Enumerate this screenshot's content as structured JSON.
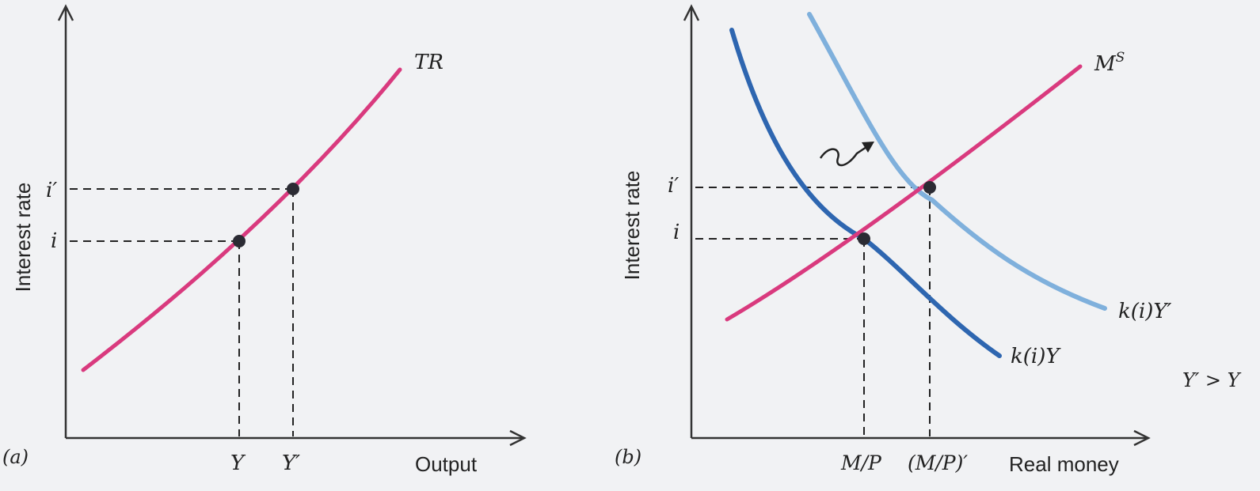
{
  "colors": {
    "tr_curve": "#d93a7e",
    "ms_curve": "#d93a7e",
    "demand_y": "#2e66b0",
    "demand_y_prime": "#7fb0dc",
    "axis": "#333333",
    "point": "#2b2b33"
  },
  "panel_a": {
    "label": "(a)",
    "y_axis_label": "Interest rate",
    "x_axis_label": "Output",
    "curve_label": "TR",
    "y_ticks": [
      "i′",
      "i"
    ],
    "x_ticks": [
      "Y",
      "Y′"
    ]
  },
  "panel_b": {
    "label": "(b)",
    "y_axis_label": "Interest rate",
    "x_axis_label": "Real money",
    "supply_label_base": "M",
    "supply_label_sup": "S",
    "demand_label": "k(i)Y",
    "demand_shift_label": "k(i)Y′",
    "note": "Y′ > Y",
    "y_ticks": [
      "i′",
      "i"
    ],
    "x_ticks": [
      "M/P",
      "(M/P)′"
    ],
    "shift_arrow_icon": "wavy-arrow-icon"
  }
}
